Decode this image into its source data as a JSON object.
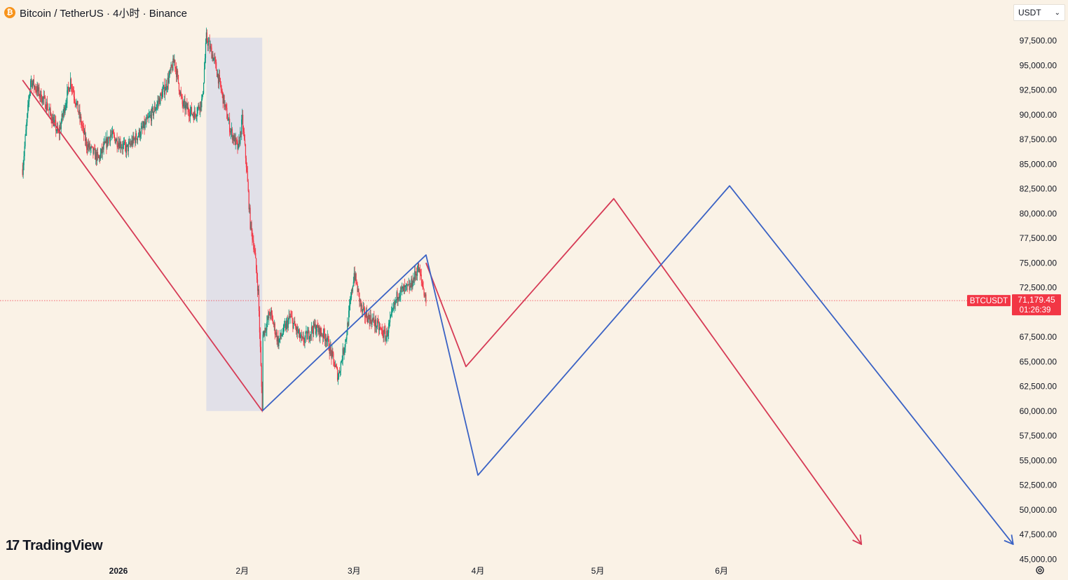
{
  "header": {
    "coin_icon_glyph": "₿",
    "title": "Bitcoin / TetherUS · 4小时 · Binance"
  },
  "currency_select": {
    "value": "USDT",
    "chevron": "⌄"
  },
  "price_tag": {
    "symbol": "BTCUSDT",
    "price": "71,179.45",
    "countdown": "01:26:39",
    "color": "#f23645"
  },
  "logo": {
    "mark": "17",
    "text": "TradingView"
  },
  "icons": {
    "settings": "settings-icon",
    "coin": "bitcoin-icon"
  },
  "colors": {
    "background": "#faf2e6",
    "up_candle": "#089981",
    "down_candle": "#f23645",
    "red_projection": "#d63a55",
    "blue_projection": "#3a62c4",
    "highlight_box": "#dcdde8"
  },
  "chart_data": {
    "type": "candlestick",
    "timeframe": "4小时",
    "x_tick_labels": [
      "2026",
      "2月",
      "3月",
      "4月",
      "5月",
      "6月"
    ],
    "x_tick_dates": [
      "2026-01-01",
      "2026-02-01",
      "2026-03-01",
      "2026-04-01",
      "2026-05-01",
      "2026-06-01"
    ],
    "y_tick_labels": [
      "97,500.00",
      "95,000.00",
      "92,500.00",
      "90,000.00",
      "87,500.00",
      "85,000.00",
      "82,500.00",
      "80,000.00",
      "77,500.00",
      "75,000.00",
      "72,500.00",
      "67,500.00",
      "65,000.00",
      "62,500.00",
      "60,000.00",
      "57,500.00",
      "55,000.00",
      "52,500.00",
      "50,000.00",
      "47,500.00",
      "45,000.00"
    ],
    "y_range": [
      45000,
      98500
    ],
    "last_price": 71179.45,
    "price_path_approx": [
      [
        "2025-12-08",
        84500
      ],
      [
        "2025-12-10",
        93500
      ],
      [
        "2025-12-14",
        91000
      ],
      [
        "2025-12-17",
        88000
      ],
      [
        "2025-12-20",
        93500
      ],
      [
        "2025-12-24",
        87000
      ],
      [
        "2025-12-27",
        85500
      ],
      [
        "2025-12-30",
        88000
      ],
      [
        "2026-01-03",
        86500
      ],
      [
        "2026-01-07",
        88500
      ],
      [
        "2026-01-10",
        90500
      ],
      [
        "2026-01-13",
        93000
      ],
      [
        "2026-01-15",
        95500
      ],
      [
        "2026-01-17",
        91000
      ],
      [
        "2026-01-20",
        90000
      ],
      [
        "2026-01-22",
        91500
      ],
      [
        "2026-01-23",
        97800
      ],
      [
        "2026-01-25",
        95500
      ],
      [
        "2026-01-27",
        92000
      ],
      [
        "2026-01-29",
        88500
      ],
      [
        "2026-01-31",
        86500
      ],
      [
        "2026-02-01",
        89500
      ],
      [
        "2026-02-02",
        85000
      ],
      [
        "2026-02-03",
        79000
      ],
      [
        "2026-02-04",
        76500
      ],
      [
        "2026-02-05",
        72000
      ],
      [
        "2026-02-06",
        60500
      ],
      [
        "2026-02-06",
        67500
      ],
      [
        "2026-02-08",
        70000
      ],
      [
        "2026-02-10",
        67000
      ],
      [
        "2026-02-13",
        69500
      ],
      [
        "2026-02-16",
        67000
      ],
      [
        "2026-02-19",
        68500
      ],
      [
        "2026-02-22",
        67500
      ],
      [
        "2026-02-25",
        63500
      ],
      [
        "2026-02-27",
        67500
      ],
      [
        "2026-03-01",
        74000
      ],
      [
        "2026-03-03",
        70000
      ],
      [
        "2026-03-06",
        69000
      ],
      [
        "2026-03-09",
        67500
      ],
      [
        "2026-03-12",
        72000
      ],
      [
        "2026-03-15",
        72500
      ],
      [
        "2026-03-17",
        74500
      ],
      [
        "2026-03-18",
        73000
      ],
      [
        "2026-03-19",
        71200
      ]
    ],
    "highlight_range": {
      "start": "2026-01-23",
      "end": "2026-02-06",
      "high": 97800,
      "low": 60000
    },
    "projections": [
      {
        "name": "",
        "color": "#d63a55",
        "points": [
          [
            "2025-12-08",
            93500
          ],
          [
            "2026-02-06",
            60000
          ]
        ]
      },
      {
        "name": "",
        "color": "#d63a55",
        "points": [
          [
            "2026-03-19",
            75000
          ],
          [
            "2026-03-29",
            64500
          ],
          [
            "2026-05-05",
            81500
          ],
          [
            "2026-07-06",
            46500
          ]
        ]
      },
      {
        "name": "",
        "color": "#3a62c4",
        "points": [
          [
            "2026-02-06",
            60000
          ],
          [
            "2026-03-19",
            75800
          ],
          [
            "2026-04-01",
            53500
          ],
          [
            "2026-06-03",
            82800
          ],
          [
            "2026-08-13",
            46500
          ]
        ]
      }
    ]
  }
}
